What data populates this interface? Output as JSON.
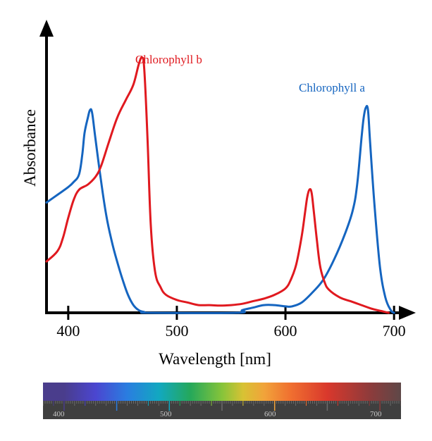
{
  "chart_data": {
    "type": "line",
    "xlabel": "Wavelength [nm]",
    "ylabel": "Absorbance",
    "xlim": [
      380,
      720
    ],
    "ylim": [
      0,
      100
    ],
    "x_ticks": [
      400,
      500,
      600,
      700
    ],
    "grid": false,
    "legend": "inline labels near peaks",
    "series": [
      {
        "name": "Chlorophyll a",
        "color": "#1565c0",
        "points": [
          [
            380,
            43
          ],
          [
            390,
            46
          ],
          [
            400,
            49
          ],
          [
            405,
            51
          ],
          [
            410,
            54
          ],
          [
            413,
            62
          ],
          [
            415,
            70
          ],
          [
            418,
            76
          ],
          [
            420,
            79
          ],
          [
            422,
            78
          ],
          [
            425,
            68
          ],
          [
            430,
            52
          ],
          [
            435,
            38
          ],
          [
            440,
            28
          ],
          [
            445,
            20
          ],
          [
            450,
            13
          ],
          [
            455,
            7
          ],
          [
            460,
            3
          ],
          [
            465,
            1
          ],
          [
            470,
            0.3
          ],
          [
            475,
            0
          ],
          [
            555,
            0
          ],
          [
            560,
            1
          ],
          [
            570,
            2
          ],
          [
            580,
            3
          ],
          [
            590,
            3
          ],
          [
            600,
            2.5
          ],
          [
            606,
            2.5
          ],
          [
            615,
            4
          ],
          [
            625,
            8
          ],
          [
            635,
            13
          ],
          [
            645,
            21
          ],
          [
            655,
            31
          ],
          [
            662,
            40
          ],
          [
            666,
            50
          ],
          [
            670,
            68
          ],
          [
            672,
            76
          ],
          [
            674,
            80
          ],
          [
            676,
            79
          ],
          [
            678,
            66
          ],
          [
            682,
            42
          ],
          [
            687,
            18
          ],
          [
            692,
            6
          ],
          [
            697,
            1
          ],
          [
            700,
            0
          ]
        ]
      },
      {
        "name": "Chlorophyll b",
        "color": "#e0191f",
        "points": [
          [
            380,
            20
          ],
          [
            390,
            24
          ],
          [
            395,
            29
          ],
          [
            400,
            37
          ],
          [
            405,
            44
          ],
          [
            410,
            48
          ],
          [
            418,
            50
          ],
          [
            425,
            53
          ],
          [
            430,
            57
          ],
          [
            437,
            66
          ],
          [
            445,
            76
          ],
          [
            453,
            83
          ],
          [
            460,
            89
          ],
          [
            465,
            97
          ],
          [
            468,
            99.5
          ],
          [
            470,
            95
          ],
          [
            473,
            68
          ],
          [
            476,
            34
          ],
          [
            480,
            16
          ],
          [
            485,
            10
          ],
          [
            490,
            7
          ],
          [
            500,
            5
          ],
          [
            510,
            4
          ],
          [
            520,
            3
          ],
          [
            530,
            3
          ],
          [
            540,
            2.8
          ],
          [
            550,
            3
          ],
          [
            560,
            3.5
          ],
          [
            570,
            4.5
          ],
          [
            580,
            5.5
          ],
          [
            590,
            7
          ],
          [
            600,
            9.5
          ],
          [
            605,
            13
          ],
          [
            610,
            19
          ],
          [
            615,
            30
          ],
          [
            618,
            39
          ],
          [
            620,
            45
          ],
          [
            622,
            48
          ],
          [
            624,
            47
          ],
          [
            626,
            40
          ],
          [
            629,
            28
          ],
          [
            632,
            18
          ],
          [
            636,
            12
          ],
          [
            640,
            9
          ],
          [
            650,
            6
          ],
          [
            660,
            4.5
          ],
          [
            670,
            3
          ],
          [
            680,
            1.5
          ],
          [
            690,
            0.5
          ],
          [
            695,
            0
          ]
        ]
      }
    ]
  },
  "spectrum_bar": {
    "labels": [
      "400",
      "500",
      "600",
      "700"
    ],
    "colors": {
      "400": "#4a3d8c",
      "430": "#4b46d0",
      "460": "#2a7de0",
      "490": "#12a8c0",
      "520": "#25a85a",
      "550": "#86c43a",
      "570": "#d8c234",
      "590": "#f1a33a",
      "615": "#f07030",
      "650": "#d9382c",
      "690": "#8e3b3b",
      "720": "#5e4848"
    }
  }
}
